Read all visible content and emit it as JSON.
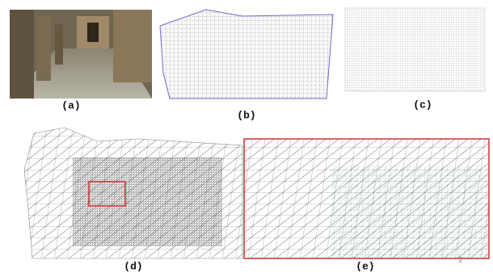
{
  "panels": [
    {
      "label": "(a)"
    },
    {
      "label": "(b)"
    },
    {
      "label": "(c)"
    },
    {
      "label": "(d)"
    },
    {
      "label": "(e)"
    }
  ],
  "corner_mark": "2"
}
